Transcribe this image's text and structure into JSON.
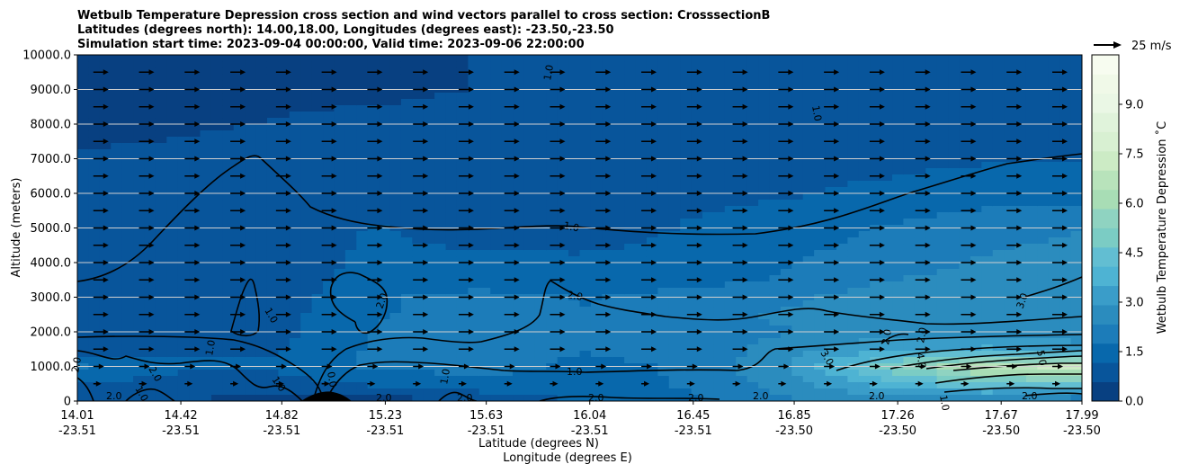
{
  "chart_data": {
    "type": "heatmap",
    "title_lines": [
      "Wetbulb Temperature Depression cross section and wind vectors parallel to cross section: CrosssectionB",
      "Latitudes (degrees north): 14.00,18.00, Longitudes (degrees east): -23.50,-23.50",
      "Simulation start time: 2023-09-04 00:00:00, Valid time: 2023-09-06 22:00:00"
    ],
    "ylabel": "Altitude (meters)",
    "xlabel_lat": "Latitude (degrees N)",
    "xlabel_lon": "Longitude (degrees E)",
    "ylim": [
      0,
      10000
    ],
    "yticks": [
      "0",
      "1000.0",
      "2000.0",
      "3000.0",
      "4000.0",
      "5000.0",
      "6000.0",
      "7000.0",
      "8000.0",
      "9000.0",
      "10000.0"
    ],
    "xlim": [
      14.01,
      17.99
    ],
    "xticks": [
      {
        "lat": "14.01",
        "lon": "-23.51"
      },
      {
        "lat": "14.42",
        "lon": "-23.51"
      },
      {
        "lat": "14.82",
        "lon": "-23.51"
      },
      {
        "lat": "15.23",
        "lon": "-23.51"
      },
      {
        "lat": "15.63",
        "lon": "-23.51"
      },
      {
        "lat": "16.04",
        "lon": "-23.51"
      },
      {
        "lat": "16.45",
        "lon": "-23.51"
      },
      {
        "lat": "16.85",
        "lon": "-23.50"
      },
      {
        "lat": "17.26",
        "lon": "-23.50"
      },
      {
        "lat": "17.67",
        "lon": "-23.50"
      },
      {
        "lat": "17.99",
        "lon": "-23.50"
      }
    ],
    "grid": "horizontal",
    "colorbar": {
      "label": "Wetbulb Temperature Depression ˚C",
      "vmin": 0.0,
      "vmax": 10.5,
      "ticks": [
        "0.0",
        "1.5",
        "3.0",
        "4.5",
        "6.0",
        "7.5",
        "9.0"
      ],
      "colors": [
        "#084081",
        "#08559b",
        "#0868ac",
        "#1c7cb9",
        "#2b8cbe",
        "#3a9dc9",
        "#4eb3d3",
        "#62bed2",
        "#7bccc4",
        "#8fd3c1",
        "#a8ddb5",
        "#b8e3bb",
        "#ccebc5",
        "#d8f0d2",
        "#e0f3db",
        "#eaf7e5",
        "#f0f9e8",
        "#f7fcf0"
      ]
    },
    "wind_vector_key": "25 m/s",
    "contour_labels": [
      "1.0",
      "2.0",
      "3.0",
      "4.0",
      "5.0",
      "0.0"
    ],
    "field_grid": {
      "x": [
        14.01,
        14.41,
        14.81,
        15.21,
        15.61,
        16.01,
        16.41,
        16.81,
        17.21,
        17.61,
        17.99
      ],
      "y": [
        0,
        500,
        1000,
        1500,
        2000,
        2500,
        3000,
        3500,
        4000,
        5000,
        6000,
        7000,
        8000,
        9000,
        10000
      ],
      "values": [
        [
          0.5,
          0.6,
          0.3,
          0.2,
          0.8,
          1.2,
          1.6,
          2.2,
          2.6,
          2.2,
          1.8
        ],
        [
          1.2,
          0.9,
          0.9,
          1.3,
          1.5,
          1.5,
          1.8,
          2.6,
          3.8,
          4.6,
          4.6
        ],
        [
          1.8,
          1.3,
          1.3,
          1.9,
          2.0,
          1.6,
          1.8,
          2.8,
          5.0,
          6.8,
          7.2
        ],
        [
          0.8,
          1.0,
          1.1,
          1.9,
          2.0,
          1.8,
          1.9,
          2.6,
          3.4,
          3.6,
          3.0
        ],
        [
          0.7,
          0.9,
          1.0,
          1.8,
          1.9,
          1.8,
          2.1,
          2.3,
          2.6,
          2.7,
          2.7
        ],
        [
          0.8,
          0.9,
          1.0,
          1.7,
          2.0,
          1.8,
          2.2,
          2.4,
          2.6,
          2.7,
          2.8
        ],
        [
          0.8,
          0.9,
          0.9,
          1.7,
          2.0,
          1.7,
          2.0,
          2.2,
          2.6,
          2.7,
          2.8
        ],
        [
          0.8,
          0.9,
          0.9,
          1.4,
          1.4,
          1.3,
          1.5,
          1.8,
          2.3,
          2.6,
          2.7
        ],
        [
          0.8,
          1.0,
          0.9,
          1.3,
          1.3,
          1.3,
          1.4,
          1.7,
          2.0,
          2.4,
          2.6
        ],
        [
          0.7,
          0.8,
          1.0,
          1.2,
          0.9,
          0.8,
          1.2,
          1.5,
          1.8,
          2.1,
          2.3
        ],
        [
          0.6,
          0.8,
          1.1,
          1.0,
          0.9,
          0.9,
          1.0,
          1.1,
          1.3,
          1.5,
          1.5
        ],
        [
          0.6,
          0.7,
          0.9,
          0.9,
          0.9,
          0.8,
          0.8,
          1.0,
          1.0,
          1.1,
          1.1
        ],
        [
          0.5,
          0.5,
          0.6,
          0.7,
          0.7,
          0.8,
          0.8,
          0.9,
          0.9,
          0.9,
          0.9
        ],
        [
          0.4,
          0.4,
          0.5,
          0.5,
          0.6,
          0.7,
          0.8,
          0.8,
          0.8,
          0.7,
          0.7
        ],
        [
          0.4,
          0.4,
          0.5,
          0.5,
          0.6,
          0.7,
          0.8,
          0.8,
          0.8,
          0.7,
          0.6
        ]
      ]
    }
  }
}
